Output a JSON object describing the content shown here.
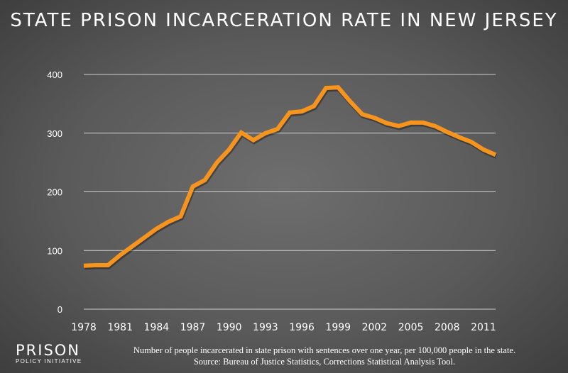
{
  "chart_data": {
    "type": "line",
    "title": "STATE PRISON INCARCERATION RATE IN NEW JERSEY",
    "x": [
      1978,
      1979,
      1980,
      1981,
      1982,
      1983,
      1984,
      1985,
      1986,
      1987,
      1988,
      1989,
      1990,
      1991,
      1992,
      1993,
      1994,
      1995,
      1996,
      1997,
      1998,
      1999,
      2000,
      2001,
      2002,
      2003,
      2004,
      2005,
      2006,
      2007,
      2008,
      2009,
      2010,
      2011,
      2012
    ],
    "values": [
      74,
      75,
      75,
      92,
      107,
      122,
      137,
      149,
      158,
      209,
      220,
      250,
      272,
      301,
      288,
      300,
      307,
      335,
      337,
      346,
      377,
      378,
      354,
      332,
      326,
      317,
      312,
      318,
      318,
      312,
      302,
      293,
      285,
      272,
      263
    ],
    "xticks": [
      "1978",
      "1981",
      "1984",
      "1987",
      "1990",
      "1993",
      "1996",
      "1999",
      "2002",
      "2005",
      "2008",
      "2011"
    ],
    "yticks": [
      "0",
      "100",
      "200",
      "300",
      "400"
    ],
    "ylim": [
      0,
      400
    ],
    "xlim": [
      1978,
      2012
    ],
    "grid": true,
    "line_color": "#f7941d",
    "caption": "Number of people incarcerated in state prison with sentences over one year, per 100,000 people in the state.",
    "source": "Source: Bureau of Justice Statistics, Corrections Statistical Analysis Tool."
  },
  "logo": {
    "line1": "PRISON",
    "line2": "POLICY INITIATIVE"
  }
}
